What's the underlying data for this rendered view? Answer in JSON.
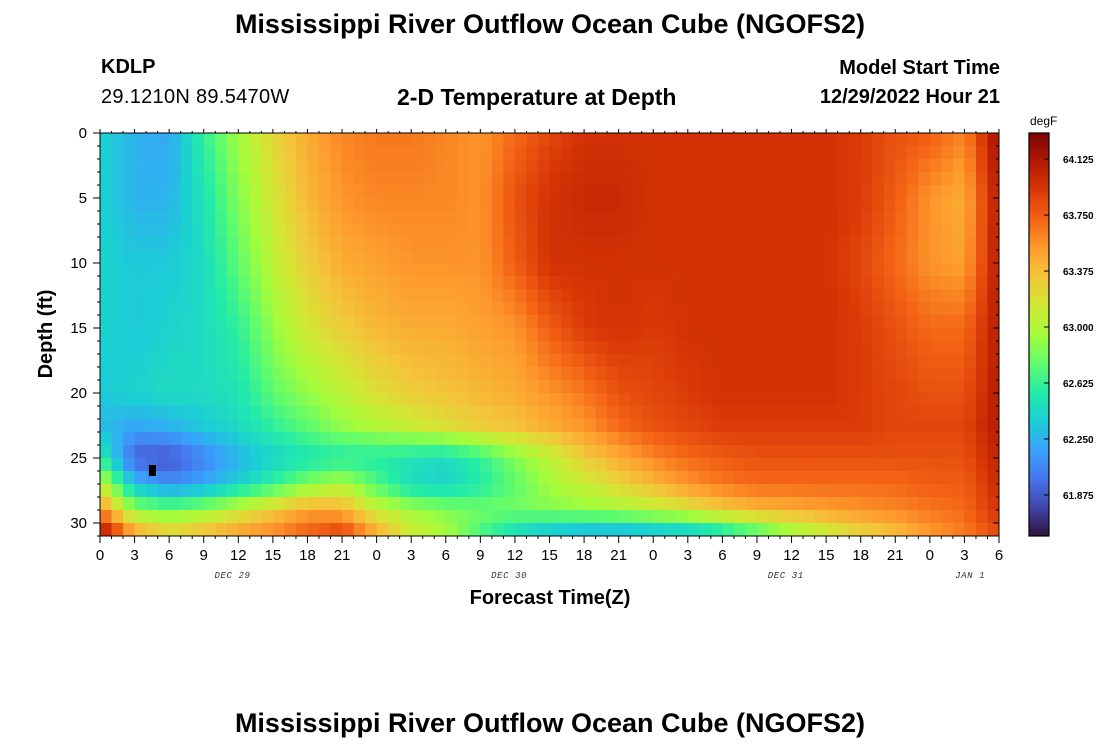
{
  "header": {
    "title": "Mississippi River Outflow Ocean Cube (NGOFS2)",
    "station": "KDLP",
    "coordinates": "29.1210N  89.5470W",
    "subtitle": "2-D Temperature at Depth",
    "model_start_label": "Model Start Time",
    "model_start_value": "12/29/2022 Hour 21"
  },
  "footer": {
    "title": "Mississippi River Outflow Ocean Cube (NGOFS2)"
  },
  "chart_data": {
    "type": "heatmap",
    "xlabel": "Forecast Time(Z)",
    "ylabel": "Depth (ft)",
    "x_range_hours": [
      0,
      78
    ],
    "y_range_ft": [
      0,
      31
    ],
    "y_ticks": [
      "0",
      "5",
      "10",
      "15",
      "20",
      "25",
      "30"
    ],
    "x_tick_labels": [
      "0",
      "3",
      "6",
      "9",
      "12",
      "15",
      "18",
      "21",
      "0",
      "3",
      "6",
      "9",
      "12",
      "15",
      "18",
      "21",
      "0",
      "3",
      "6",
      "9",
      "12",
      "15",
      "18",
      "21",
      "0",
      "3",
      "6"
    ],
    "day_labels": [
      {
        "text": "DEC 29",
        "hour": 11.5
      },
      {
        "text": "DEC 30",
        "hour": 35.5
      },
      {
        "text": "DEC 31",
        "hour": 59.5
      },
      {
        "text": "JAN 1",
        "hour": 75.5
      }
    ],
    "colorbar": {
      "unit": "degF",
      "min": 61.6,
      "max": 64.3,
      "ticks": [
        "64.125",
        "63.750",
        "63.375",
        "63.000",
        "62.625",
        "62.250",
        "61.875"
      ],
      "colormap": [
        "#30123b",
        "#4145ab",
        "#4675ed",
        "#39a2fc",
        "#1bcfd4",
        "#24eca6",
        "#61fc6c",
        "#a4fc3b",
        "#d1e834",
        "#f3c63a",
        "#fe9b2d",
        "#f36315",
        "#d93806",
        "#b11901",
        "#7a0403"
      ]
    },
    "colors": {
      "coldest_spot_marker": "#000000"
    },
    "temperature_field_degF": {
      "depths_ft": [
        0,
        5,
        10,
        15,
        20,
        22.5,
        25,
        27,
        29,
        30.5
      ],
      "hours": [
        0,
        3,
        6,
        9,
        12,
        15,
        18,
        21,
        24,
        27,
        30,
        33,
        36,
        39,
        42,
        45,
        48,
        51,
        54,
        57,
        60,
        63,
        66,
        69,
        72,
        75,
        78
      ],
      "values": [
        [
          62.4,
          62.25,
          62.2,
          62.6,
          62.95,
          63.25,
          63.45,
          63.6,
          63.65,
          63.65,
          63.6,
          63.55,
          63.7,
          63.85,
          63.95,
          63.95,
          63.95,
          63.95,
          63.95,
          63.95,
          63.95,
          63.95,
          63.9,
          63.8,
          63.75,
          63.6,
          64.2
        ],
        [
          62.4,
          62.25,
          62.25,
          62.5,
          62.85,
          63.15,
          63.4,
          63.55,
          63.6,
          63.6,
          63.6,
          63.55,
          63.8,
          63.95,
          64.0,
          64.0,
          63.95,
          63.95,
          63.95,
          63.95,
          63.95,
          63.95,
          63.9,
          63.75,
          63.55,
          63.45,
          64.1
        ],
        [
          62.4,
          62.35,
          62.35,
          62.45,
          62.75,
          63.05,
          63.3,
          63.45,
          63.5,
          63.55,
          63.55,
          63.55,
          63.75,
          63.95,
          63.95,
          63.95,
          63.95,
          63.95,
          63.95,
          63.95,
          63.95,
          63.95,
          63.85,
          63.7,
          63.55,
          63.5,
          64.1
        ],
        [
          62.4,
          62.35,
          62.4,
          62.45,
          62.6,
          62.9,
          63.15,
          63.3,
          63.4,
          63.45,
          63.45,
          63.5,
          63.55,
          63.75,
          63.9,
          63.95,
          63.9,
          63.95,
          63.95,
          63.95,
          63.95,
          63.95,
          63.9,
          63.8,
          63.7,
          63.7,
          64.1
        ],
        [
          62.35,
          62.4,
          62.45,
          62.45,
          62.5,
          62.75,
          62.9,
          63.05,
          63.2,
          63.3,
          63.35,
          63.4,
          63.45,
          63.55,
          63.65,
          63.8,
          63.85,
          63.9,
          63.95,
          63.95,
          63.95,
          63.95,
          63.9,
          63.85,
          63.8,
          63.8,
          64.1
        ],
        [
          62.3,
          62.2,
          62.25,
          62.35,
          62.45,
          62.6,
          62.75,
          62.9,
          63.0,
          63.1,
          63.2,
          63.3,
          63.35,
          63.45,
          63.55,
          63.7,
          63.8,
          63.85,
          63.9,
          63.9,
          63.9,
          63.9,
          63.9,
          63.85,
          63.85,
          63.85,
          64.1
        ],
        [
          62.6,
          61.9,
          61.85,
          62.05,
          62.25,
          62.4,
          62.5,
          62.55,
          62.55,
          62.5,
          62.45,
          62.6,
          62.85,
          63.05,
          63.3,
          63.45,
          63.6,
          63.7,
          63.75,
          63.8,
          63.8,
          63.8,
          63.8,
          63.8,
          63.8,
          63.8,
          64.05
        ],
        [
          63.1,
          62.3,
          62.1,
          62.2,
          62.4,
          62.6,
          62.85,
          63.0,
          62.7,
          62.45,
          62.4,
          62.55,
          62.75,
          62.95,
          63.1,
          63.25,
          63.4,
          63.55,
          63.65,
          63.7,
          63.7,
          63.7,
          63.7,
          63.7,
          63.75,
          63.75,
          64.0
        ],
        [
          63.6,
          62.9,
          62.8,
          62.9,
          63.1,
          63.3,
          63.5,
          63.45,
          63.1,
          62.95,
          62.85,
          62.8,
          62.8,
          62.85,
          62.9,
          62.95,
          63.05,
          63.15,
          63.3,
          63.4,
          63.45,
          63.5,
          63.55,
          63.6,
          63.65,
          63.7,
          63.95
        ],
        [
          64.1,
          63.4,
          63.2,
          63.3,
          63.45,
          63.55,
          63.7,
          63.8,
          63.4,
          63.1,
          62.95,
          62.7,
          62.5,
          62.4,
          62.35,
          62.35,
          62.4,
          62.45,
          62.6,
          62.8,
          63.0,
          63.15,
          63.3,
          63.4,
          63.55,
          63.65,
          63.85
        ]
      ]
    },
    "coldest_spot_value": {
      "hour": 4.5,
      "depth_ft": 26
    }
  }
}
